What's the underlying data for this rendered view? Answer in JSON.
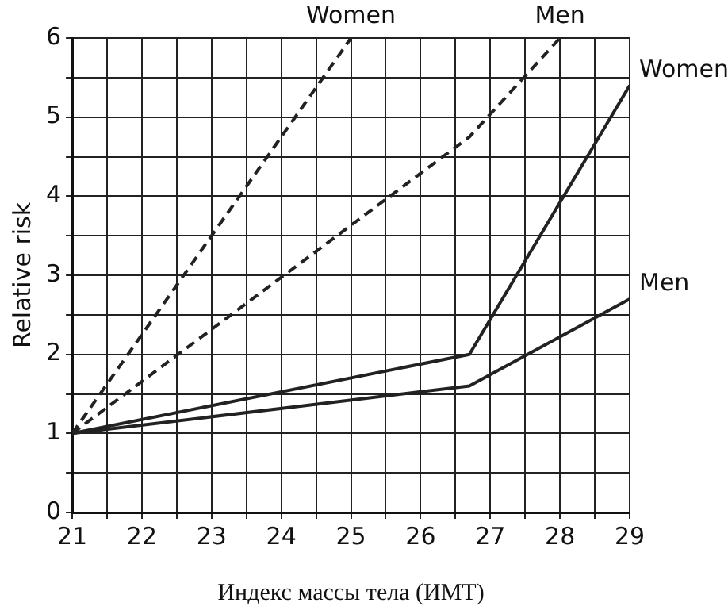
{
  "chart_data": {
    "type": "line",
    "xlabel": "Индекс массы тела (ИМТ)",
    "ylabel": "Relative risk",
    "series": [
      {
        "name": "Women",
        "color": "#222222",
        "line_style": "dashed",
        "x": [
          21,
          25
        ],
        "values": [
          1,
          6
        ]
      },
      {
        "name": "Men",
        "color": "#222222",
        "line_style": "dashed",
        "x": [
          21,
          26.7,
          28
        ],
        "values": [
          1,
          4.75,
          6
        ]
      },
      {
        "name": "Women",
        "color": "#222222",
        "line_style": "solid",
        "x": [
          21,
          26.7,
          29
        ],
        "values": [
          1,
          2,
          5.4
        ]
      },
      {
        "name": "Men",
        "color": "#222222",
        "line_style": "solid",
        "x": [
          21,
          26.7,
          29
        ],
        "values": [
          1,
          1.6,
          2.7
        ]
      }
    ],
    "xlim": [
      21,
      29
    ],
    "ylim": [
      0,
      6
    ],
    "xticks": [
      21,
      {
        "value": 21.5,
        "label": null
      },
      22,
      {
        "value": 22.5,
        "label": null
      },
      23,
      {
        "value": 23.5,
        "label": null
      },
      24,
      {
        "value": 24.5,
        "label": null
      },
      25,
      {
        "value": 25.5,
        "label": null
      },
      26,
      {
        "value": 26.5,
        "label": null
      },
      27,
      {
        "value": 27.5,
        "label": null
      },
      28,
      {
        "value": 28.5,
        "label": null
      },
      29
    ],
    "yticks": [
      0,
      {
        "value": 0.5,
        "label": null
      },
      1,
      {
        "value": 1.5,
        "label": null
      },
      2,
      {
        "value": 2.5,
        "label": null
      },
      3,
      {
        "value": 3.5,
        "label": null
      },
      4,
      {
        "value": 4.5,
        "label": null
      },
      5,
      {
        "value": 5.5,
        "label": null
      },
      6
    ],
    "grid": true,
    "legend": false,
    "marker": "none"
  }
}
